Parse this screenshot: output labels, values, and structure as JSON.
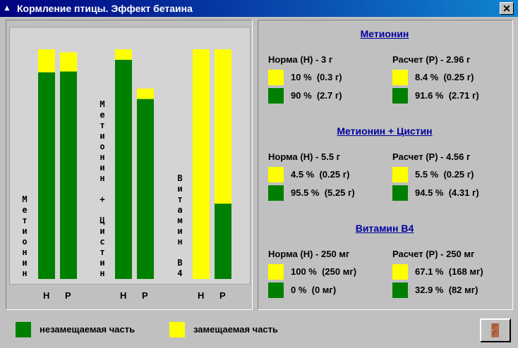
{
  "window": {
    "title": "Кормление птицы. Эффект бетаина"
  },
  "colors": {
    "nonreplaceable": "#008000",
    "replaceable": "#ffff00"
  },
  "chart": {
    "bar_labels": [
      "Н",
      "Р"
    ]
  },
  "sections": [
    {
      "title": "Метионин",
      "chart_label": "Метионин",
      "norm": {
        "label": "Норма (Н) - 3 г",
        "replaceable": {
          "amount": 0.3,
          "label": "10 %  (0.3 г)"
        },
        "nonreplaceable": {
          "amount": 2.7,
          "label": "90 %  (2.7 г)"
        }
      },
      "calc": {
        "label": "Расчет (Р) - 2.96 г",
        "replaceable": {
          "amount": 0.25,
          "label": "8.4 %  (0.25 г)"
        },
        "nonreplaceable": {
          "amount": 2.71,
          "label": "91.6 %  (2.71 г)"
        }
      }
    },
    {
      "title": "Метионин + Цистин",
      "chart_label": "Метионин + Цистин",
      "norm": {
        "label": "Норма (Н) - 5.5 г",
        "replaceable": {
          "amount": 0.25,
          "label": "4.5 %  (0.25 г)"
        },
        "nonreplaceable": {
          "amount": 5.25,
          "label": "95.5 %  (5.25 г)"
        }
      },
      "calc": {
        "label": "Расчет (Р) - 4.56 г",
        "replaceable": {
          "amount": 0.25,
          "label": "5.5 %  (0.25 г)"
        },
        "nonreplaceable": {
          "amount": 4.31,
          "label": "94.5 %  (4.31 г)"
        }
      }
    },
    {
      "title": "Витамин В4",
      "chart_label": "Витамин В4",
      "norm": {
        "label": "Норма (Н) - 250 мг",
        "replaceable": {
          "amount": 250,
          "label": "100 %  (250 мг)"
        },
        "nonreplaceable": {
          "amount": 0,
          "label": "0 %  (0 мг)"
        }
      },
      "calc": {
        "label": "Расчет (Р) - 250 мг",
        "replaceable": {
          "amount": 168,
          "label": "67.1 %  (168 мг)"
        },
        "nonreplaceable": {
          "amount": 82,
          "label": "32.9 %  (82 мг)"
        }
      }
    }
  ],
  "legend": {
    "nonreplaceable": "незамещаемая часть",
    "replaceable": "замещаемая часть"
  }
}
